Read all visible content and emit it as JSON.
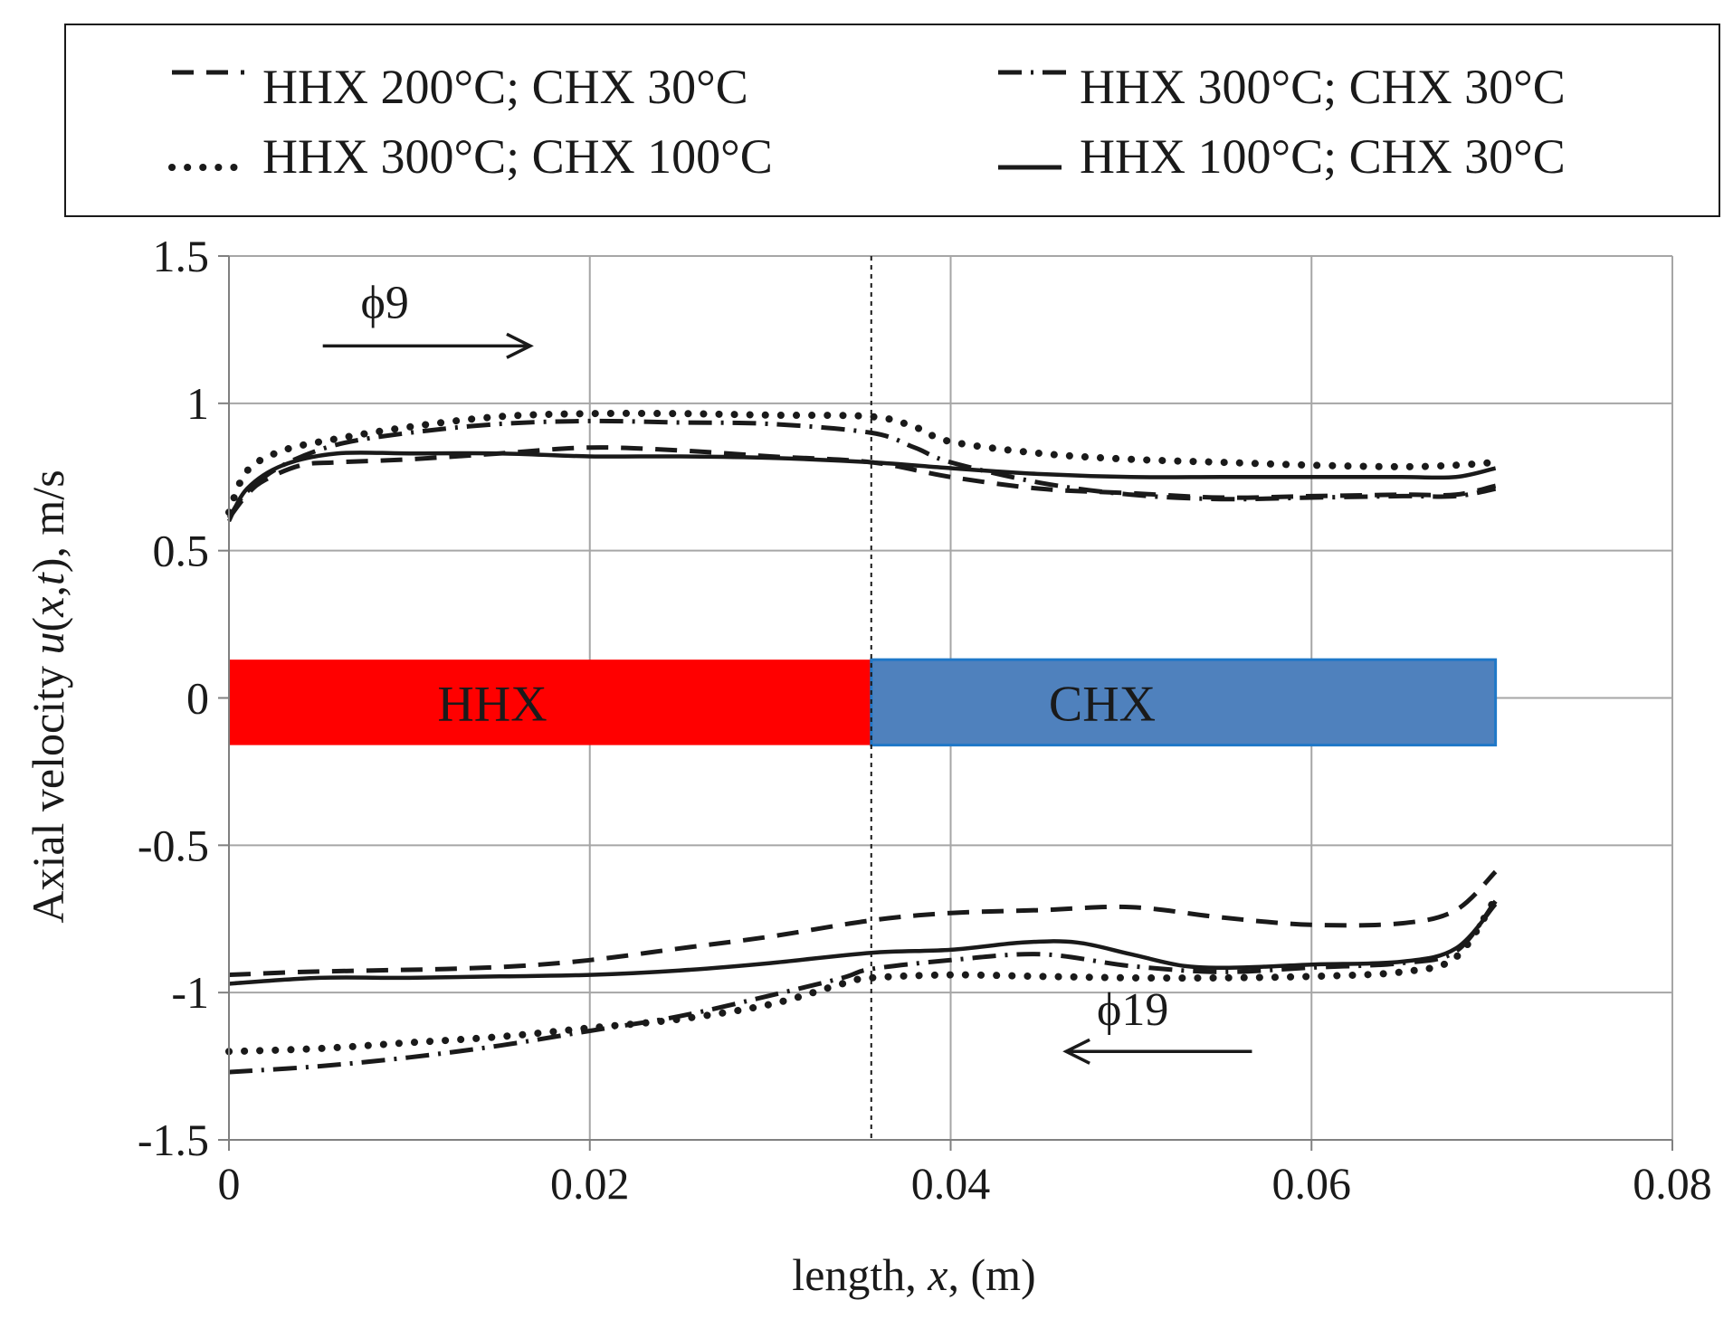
{
  "chart_data": {
    "type": "line",
    "title": "",
    "xlabel": {
      "prefix": "length, ",
      "var": "x",
      "suffix": ", (m)"
    },
    "ylabel": {
      "prefix": "Axial velocity ",
      "var": "u",
      "open": "(",
      "var2": "x",
      "comma": ",",
      "var3": "t",
      "close": ")",
      "suffix": ", m/s"
    },
    "xlim": [
      0,
      0.08
    ],
    "ylim": [
      -1.5,
      1.5
    ],
    "xticks": [
      0,
      0.02,
      0.04,
      0.06,
      0.08
    ],
    "xtick_labels": [
      "0",
      "0.02",
      "0.04",
      "0.06",
      "0.08"
    ],
    "yticks": [
      1.5,
      1,
      0.5,
      0,
      -0.5,
      -1,
      -1.5
    ],
    "ytick_labels": [
      "1.5",
      "1",
      "0.5",
      "0",
      "-0.5",
      "-1",
      "-1.5"
    ],
    "grid": true,
    "legend_position": "top",
    "divider_x": 0.0356,
    "regions": [
      {
        "label": "HHX",
        "x": [
          0,
          0.0356
        ],
        "y": [
          -0.16,
          0.13
        ],
        "color": "#ff0000"
      },
      {
        "label": "CHX",
        "x": [
          0.0356,
          0.0702
        ],
        "y": [
          -0.16,
          0.13
        ],
        "color": "#4f81bd",
        "border": "#1f78c8"
      }
    ],
    "annotations": [
      {
        "label": "ϕ9",
        "direction": "right",
        "arrow_x": [
          0.0052,
          0.0167
        ],
        "arrow_y": 1.195,
        "text_x": 0.0073,
        "text_y": 1.29
      },
      {
        "label": "ϕ19",
        "direction": "left",
        "arrow_x": [
          0.0567,
          0.0464
        ],
        "arrow_y": -1.2,
        "text_x": 0.0481,
        "text_y": -1.11
      }
    ],
    "series": [
      {
        "name": "HHX 200°C; CHX 30°C",
        "style": "dashed",
        "segments": [
          {
            "x": [
              0,
              0.001,
              0.002,
              0.004,
              0.006,
              0.01,
              0.015,
              0.02,
              0.025,
              0.03,
              0.0356,
              0.04,
              0.045,
              0.05,
              0.055,
              0.06,
              0.065,
              0.068,
              0.0702
            ],
            "y": [
              0.61,
              0.69,
              0.74,
              0.79,
              0.8,
              0.81,
              0.83,
              0.85,
              0.84,
              0.82,
              0.8,
              0.75,
              0.71,
              0.695,
              0.68,
              0.685,
              0.69,
              0.69,
              0.72
            ]
          },
          {
            "x": [
              0,
              0.004,
              0.008,
              0.012,
              0.016,
              0.02,
              0.025,
              0.03,
              0.0356,
              0.04,
              0.045,
              0.05,
              0.055,
              0.06,
              0.065,
              0.068,
              0.0702
            ],
            "y": [
              -0.94,
              -0.93,
              -0.925,
              -0.92,
              -0.91,
              -0.89,
              -0.85,
              -0.81,
              -0.755,
              -0.73,
              -0.72,
              -0.71,
              -0.745,
              -0.77,
              -0.765,
              -0.72,
              -0.59
            ]
          }
        ]
      },
      {
        "name": "HHX 300°C; CHX 30°C",
        "style": "dashdot",
        "segments": [
          {
            "x": [
              0,
              0.001,
              0.003,
              0.006,
              0.01,
              0.015,
              0.02,
              0.025,
              0.03,
              0.0356,
              0.038,
              0.04,
              0.045,
              0.05,
              0.055,
              0.06,
              0.065,
              0.068,
              0.0702
            ],
            "y": [
              0.61,
              0.7,
              0.79,
              0.86,
              0.9,
              0.93,
              0.94,
              0.935,
              0.93,
              0.9,
              0.85,
              0.8,
              0.73,
              0.69,
              0.675,
              0.68,
              0.685,
              0.685,
              0.71
            ]
          },
          {
            "x": [
              0,
              0.005,
              0.01,
              0.015,
              0.02,
              0.025,
              0.03,
              0.034,
              0.0356,
              0.04,
              0.045,
              0.05,
              0.055,
              0.06,
              0.065,
              0.068,
              0.0702
            ],
            "y": [
              -1.27,
              -1.25,
              -1.22,
              -1.18,
              -1.13,
              -1.08,
              -1.01,
              -0.95,
              -0.92,
              -0.89,
              -0.87,
              -0.91,
              -0.93,
              -0.915,
              -0.9,
              -0.86,
              -0.69
            ]
          }
        ]
      },
      {
        "name": "HHX 300°C; CHX 100°C",
        "style": "dotted",
        "segments": [
          {
            "x": [
              0,
              0.001,
              0.003,
              0.006,
              0.01,
              0.015,
              0.02,
              0.025,
              0.03,
              0.0356,
              0.038,
              0.04,
              0.045,
              0.05,
              0.055,
              0.06,
              0.065,
              0.068,
              0.0702
            ],
            "y": [
              0.63,
              0.77,
              0.84,
              0.88,
              0.92,
              0.955,
              0.965,
              0.965,
              0.96,
              0.955,
              0.92,
              0.87,
              0.83,
              0.81,
              0.8,
              0.79,
              0.785,
              0.79,
              0.8
            ]
          },
          {
            "x": [
              0,
              0.005,
              0.01,
              0.015,
              0.02,
              0.025,
              0.03,
              0.034,
              0.0356,
              0.04,
              0.045,
              0.05,
              0.055,
              0.06,
              0.065,
              0.068,
              0.0702
            ],
            "y": [
              -1.2,
              -1.19,
              -1.17,
              -1.15,
              -1.12,
              -1.09,
              -1.04,
              -0.97,
              -0.95,
              -0.94,
              -0.945,
              -0.95,
              -0.95,
              -0.945,
              -0.93,
              -0.88,
              -0.68
            ]
          }
        ]
      },
      {
        "name": "HHX 100°C; CHX 30°C",
        "style": "solid",
        "segments": [
          {
            "x": [
              0,
              0.001,
              0.003,
              0.006,
              0.01,
              0.015,
              0.02,
              0.025,
              0.03,
              0.0356,
              0.04,
              0.045,
              0.05,
              0.055,
              0.06,
              0.065,
              0.068,
              0.0702
            ],
            "y": [
              0.6,
              0.71,
              0.79,
              0.83,
              0.83,
              0.83,
              0.82,
              0.82,
              0.815,
              0.8,
              0.78,
              0.76,
              0.75,
              0.75,
              0.75,
              0.75,
              0.75,
              0.78
            ]
          },
          {
            "x": [
              0,
              0.005,
              0.01,
              0.015,
              0.02,
              0.025,
              0.03,
              0.0356,
              0.04,
              0.044,
              0.047,
              0.05,
              0.053,
              0.056,
              0.06,
              0.065,
              0.068,
              0.0702
            ],
            "y": [
              -0.97,
              -0.95,
              -0.95,
              -0.945,
              -0.94,
              -0.925,
              -0.9,
              -0.865,
              -0.855,
              -0.83,
              -0.83,
              -0.87,
              -0.91,
              -0.915,
              -0.905,
              -0.895,
              -0.85,
              -0.7
            ]
          }
        ]
      }
    ]
  }
}
